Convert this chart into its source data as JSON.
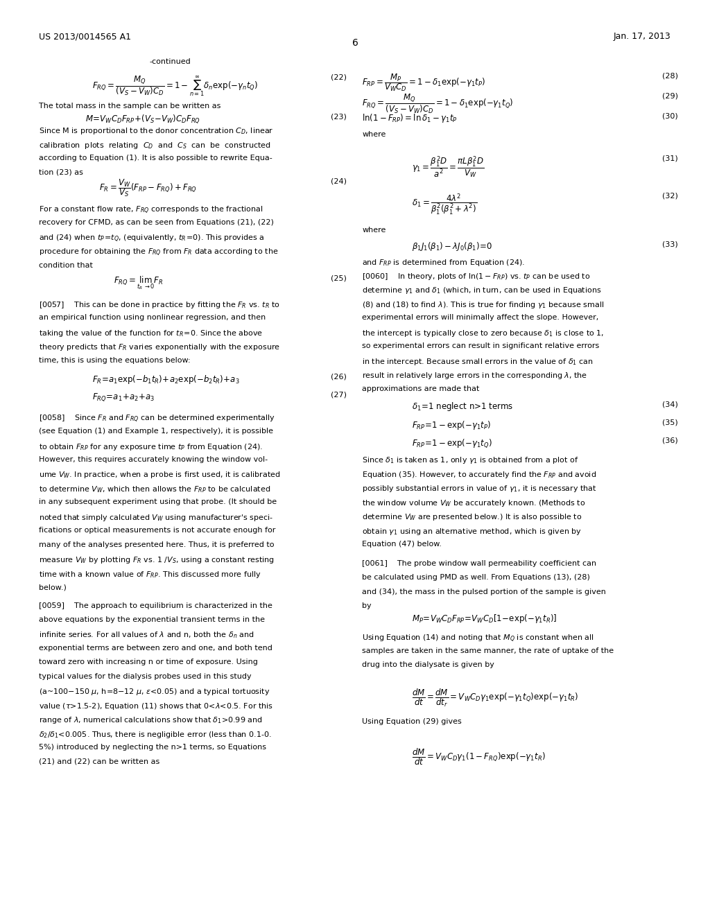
{
  "bg_color": "#ffffff",
  "header_left": "US 2013/0014565 A1",
  "header_right": "Jan. 17, 2013",
  "page_number": "6"
}
